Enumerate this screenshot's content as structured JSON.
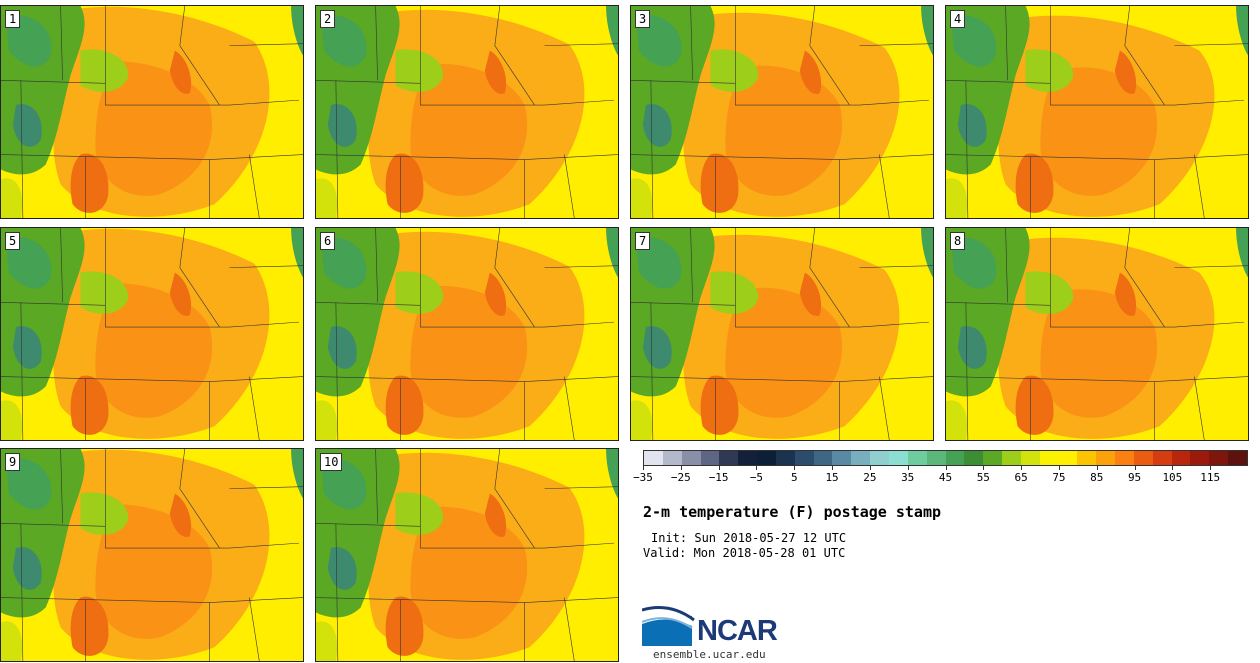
{
  "panels": [
    {
      "label": "1"
    },
    {
      "label": "2"
    },
    {
      "label": "3"
    },
    {
      "label": "4"
    },
    {
      "label": "5"
    },
    {
      "label": "6"
    },
    {
      "label": "7"
    },
    {
      "label": "8"
    },
    {
      "label": "9"
    },
    {
      "label": "10"
    }
  ],
  "colorbar": {
    "colors": [
      "#e1e3ee",
      "#b4b8cb",
      "#8a8fa8",
      "#5f6683",
      "#2e3953",
      "#13203a",
      "#0d1f36",
      "#1a3450",
      "#2b4c6a",
      "#3d6785",
      "#5a8aa3",
      "#78aebe",
      "#8fcfcf",
      "#8cdfd0",
      "#6fcc9e",
      "#5cb87a",
      "#45a153",
      "#3b8e33",
      "#5aa824",
      "#9cce1a",
      "#d4e20b",
      "#fbf200",
      "#ffef00",
      "#fcc400",
      "#fba20a",
      "#fa8011",
      "#ec5b12",
      "#d53d10",
      "#b8260d",
      "#9c1a0c",
      "#7d160c",
      "#5e120d"
    ],
    "tick_labels": [
      "−35",
      "−25",
      "−15",
      "−5",
      "5",
      "15",
      "25",
      "35",
      "45",
      "55",
      "65",
      "75",
      "85",
      "95",
      "105",
      "115"
    ]
  },
  "title": "2-m temperature (F) postage stamp",
  "init": "Init: Sun 2018-05-27 12 UTC",
  "valid": "Valid: Mon 2018-05-28 01 UTC",
  "logo": {
    "text": "NCAR",
    "url": "ensemble.ucar.edu"
  }
}
